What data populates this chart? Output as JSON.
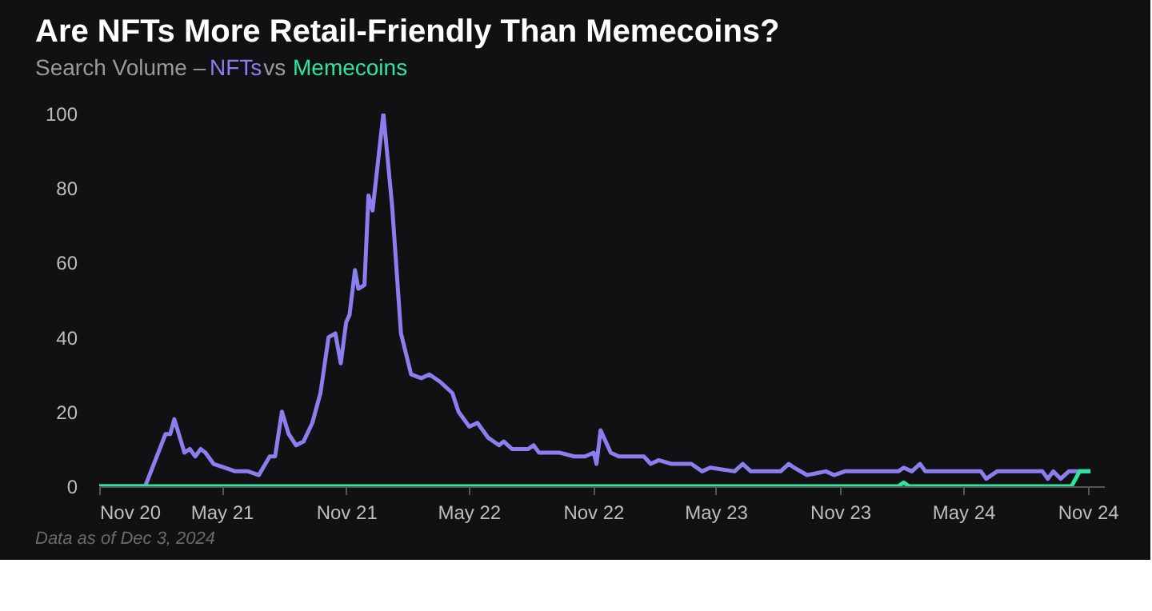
{
  "chart_data": {
    "type": "line",
    "title": "Are NFTs More Retail-Friendly Than Memecoins?",
    "subtitle": "Search Volume –",
    "annotations": [
      "vs",
      "Data as of Dec 3, 2024"
    ],
    "xlim": [
      "2020-11-01",
      "2024-11-25"
    ],
    "xticks": [
      {
        "value": "2020-11-01",
        "label": "Nov 20"
      },
      {
        "value": "2021-05-01",
        "label": "May 21"
      },
      {
        "value": "2021-11-01",
        "label": "Nov 21"
      },
      {
        "value": "2022-05-01",
        "label": "May 22"
      },
      {
        "value": "2022-11-01",
        "label": "Nov 22"
      },
      {
        "value": "2023-05-01",
        "label": "May 23"
      },
      {
        "value": "2023-11-01",
        "label": "Nov 23"
      },
      {
        "value": "2024-05-01",
        "label": "May 24"
      },
      {
        "value": "2024-11-01",
        "label": "Nov 24"
      }
    ],
    "ylim": [
      0,
      100
    ],
    "yticks": [
      0,
      20,
      40,
      60,
      80,
      100
    ],
    "grid": false,
    "legend": "top left",
    "line_style": "solid",
    "marker": "none",
    "series": [
      {
        "name": "NFTs",
        "color": "#8b7ff0",
        "x": [
          "2020-11-01",
          "2021-01-08",
          "2021-02-07",
          "2021-02-14",
          "2021-02-20",
          "2021-03-07",
          "2021-03-15",
          "2021-03-23",
          "2021-03-31",
          "2021-04-07",
          "2021-04-19",
          "2021-05-05",
          "2021-05-21",
          "2021-06-09",
          "2021-06-25",
          "2021-07-11",
          "2021-07-19",
          "2021-07-29",
          "2021-08-08",
          "2021-08-19",
          "2021-08-30",
          "2021-09-12",
          "2021-09-24",
          "2021-10-06",
          "2021-10-16",
          "2021-10-24",
          "2021-11-01",
          "2021-11-06",
          "2021-11-14",
          "2021-11-19",
          "2021-11-28",
          "2021-12-04",
          "2021-12-10",
          "2021-12-26",
          "2022-01-08",
          "2022-01-21",
          "2022-02-05",
          "2022-02-20",
          "2022-03-04",
          "2022-03-20",
          "2022-04-07",
          "2022-04-16",
          "2022-05-02",
          "2022-05-14",
          "2022-05-30",
          "2022-06-15",
          "2022-06-22",
          "2022-07-04",
          "2022-07-28",
          "2022-08-05",
          "2022-08-13",
          "2022-09-13",
          "2022-10-04",
          "2022-10-20",
          "2022-11-02",
          "2022-11-06",
          "2022-11-12",
          "2022-11-27",
          "2022-12-09",
          "2022-12-17",
          "2023-01-05",
          "2023-01-15",
          "2023-01-25",
          "2023-02-06",
          "2023-02-25",
          "2023-03-26",
          "2023-04-11",
          "2023-04-23",
          "2023-05-29",
          "2023-06-10",
          "2023-06-22",
          "2023-08-05",
          "2023-08-17",
          "2023-08-25",
          "2023-09-13",
          "2023-10-11",
          "2023-10-23",
          "2023-11-08",
          "2024-01-26",
          "2024-02-03",
          "2024-02-15",
          "2024-02-27",
          "2024-03-06",
          "2024-03-21",
          "2024-05-27",
          "2024-06-04",
          "2024-06-20",
          "2024-07-06",
          "2024-08-26",
          "2024-09-03",
          "2024-09-11",
          "2024-09-22",
          "2024-10-04",
          "2024-10-20",
          "2024-11-05"
        ],
        "values": [
          0,
          0,
          14,
          14,
          18,
          9,
          10,
          8,
          10,
          9,
          6,
          5,
          4,
          4,
          3,
          8,
          8,
          20,
          14,
          11,
          12,
          17,
          25,
          40,
          41,
          33,
          44,
          46,
          58,
          53,
          54,
          78,
          74,
          100,
          75,
          41,
          30,
          29,
          30,
          28,
          25,
          20,
          16,
          17,
          13,
          11,
          12,
          10,
          10,
          11,
          9,
          9,
          8,
          8,
          9,
          6,
          15,
          9,
          8,
          8,
          8,
          8,
          6,
          7,
          6,
          6,
          4,
          5,
          4,
          6,
          4,
          4,
          6,
          5,
          3,
          4,
          3,
          4,
          4,
          5,
          4,
          6,
          4,
          4,
          4,
          2,
          4,
          4,
          4,
          2,
          4,
          2,
          4,
          4,
          4
        ]
      },
      {
        "name": "Memecoins",
        "color": "#2ee59d",
        "x": [
          "2020-11-01",
          "2024-01-26",
          "2024-02-03",
          "2024-02-11",
          "2024-10-08",
          "2024-10-20",
          "2024-11-05"
        ],
        "values": [
          0,
          0,
          1,
          0,
          0,
          4,
          4
        ]
      }
    ]
  }
}
